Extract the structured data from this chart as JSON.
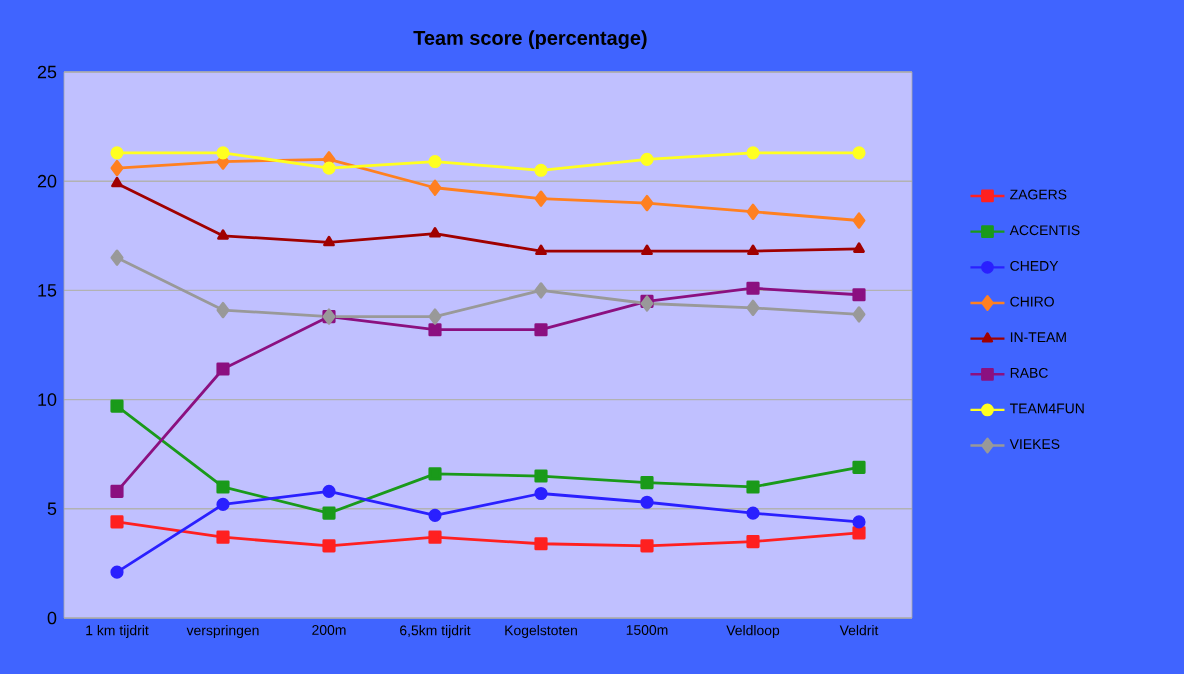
{
  "chart_data": {
    "type": "line",
    "title": "Team score (percentage)",
    "categories": [
      "1 km tijdrit",
      "verspringen",
      "200m",
      "6,5km tijdrit",
      "Kogelstoten",
      "1500m",
      "Veldloop",
      "Veldrit"
    ],
    "ylim": [
      0,
      25
    ],
    "yticks": [
      0,
      5,
      10,
      15,
      20,
      25
    ],
    "grid": "y",
    "legend": "right",
    "line_style": "solid",
    "series": [
      {
        "name": "ZAGERS",
        "color": "#ff2020",
        "marker": "square",
        "values": [
          4.4,
          3.7,
          3.3,
          3.7,
          3.4,
          3.3,
          3.5,
          3.9
        ]
      },
      {
        "name": "ACCENTIS",
        "color": "#1a9a1a",
        "marker": "square",
        "values": [
          9.7,
          6.0,
          4.8,
          6.6,
          6.5,
          6.2,
          6.0,
          6.9
        ]
      },
      {
        "name": "CHEDY",
        "color": "#2a20ff",
        "marker": "circle",
        "values": [
          2.1,
          5.2,
          5.8,
          4.7,
          5.7,
          5.3,
          4.8,
          4.4
        ]
      },
      {
        "name": "CHIRO",
        "color": "#ff8020",
        "marker": "diamond",
        "values": [
          20.6,
          20.9,
          21.0,
          19.7,
          19.2,
          19.0,
          18.6,
          18.2
        ]
      },
      {
        "name": "IN-TEAM",
        "color": "#a00000",
        "marker": "triangle",
        "values": [
          19.9,
          17.5,
          17.2,
          17.6,
          16.8,
          16.8,
          16.8,
          16.9
        ]
      },
      {
        "name": "RABC",
        "color": "#8b1080",
        "marker": "square",
        "values": [
          5.8,
          11.4,
          13.8,
          13.2,
          13.2,
          14.5,
          15.1,
          14.8
        ]
      },
      {
        "name": "TEAM4FUN",
        "color": "#ffff20",
        "marker": "circle",
        "values": [
          21.3,
          21.3,
          20.6,
          20.9,
          20.5,
          21.0,
          21.3,
          21.3
        ]
      },
      {
        "name": "VIEKES",
        "color": "#999999",
        "marker": "diamond",
        "values": [
          16.5,
          14.1,
          13.8,
          13.8,
          15.0,
          14.4,
          14.2,
          13.9
        ]
      }
    ]
  }
}
